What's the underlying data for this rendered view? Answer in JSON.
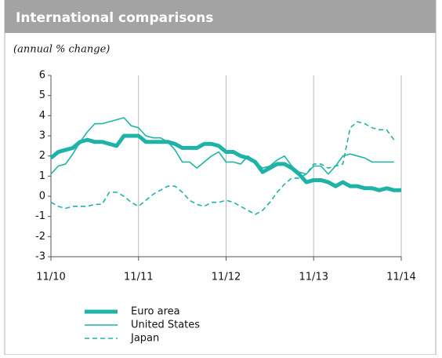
{
  "chart_data": {
    "type": "line",
    "title": "International comparisons",
    "subtitle": "(annual % change)",
    "categories": [
      "11/10",
      null,
      null,
      null,
      null,
      null,
      null,
      null,
      null,
      null,
      null,
      null,
      "11/11",
      null,
      null,
      null,
      null,
      null,
      null,
      null,
      null,
      null,
      null,
      null,
      "11/12",
      null,
      null,
      null,
      null,
      null,
      null,
      null,
      null,
      null,
      null,
      null,
      "11/13",
      null,
      null,
      null,
      null,
      null,
      null,
      null,
      null,
      null,
      null,
      null,
      "11/14"
    ],
    "ylim": [
      -3,
      6
    ],
    "yticks": [
      -3,
      -2,
      -1,
      0,
      1,
      2,
      3,
      4,
      5,
      6
    ],
    "grid": "x",
    "series": [
      {
        "name": "Euro area",
        "color": "#1fb3a8",
        "linestyle": "solid",
        "linewidth": 5,
        "values": [
          1.9,
          2.2,
          2.3,
          2.4,
          2.7,
          2.8,
          2.7,
          2.7,
          2.6,
          2.5,
          3.0,
          3.0,
          3.0,
          2.7,
          2.7,
          2.7,
          2.7,
          2.6,
          2.4,
          2.4,
          2.4,
          2.6,
          2.6,
          2.5,
          2.2,
          2.2,
          2.0,
          1.9,
          1.7,
          1.2,
          1.4,
          1.6,
          1.6,
          1.4,
          1.1,
          0.7,
          0.8,
          0.8,
          0.7,
          0.5,
          0.7,
          0.5,
          0.5,
          0.4,
          0.4,
          0.3,
          0.4,
          0.3,
          0.3
        ]
      },
      {
        "name": "United States",
        "color": "#1fb3a8",
        "linestyle": "solid",
        "linewidth": 1.6,
        "values": [
          1.1,
          1.5,
          1.6,
          2.1,
          2.7,
          3.2,
          3.6,
          3.6,
          3.7,
          3.8,
          3.9,
          3.5,
          3.4,
          3.0,
          2.9,
          2.9,
          2.7,
          2.3,
          1.7,
          1.7,
          1.4,
          1.7,
          2.0,
          2.2,
          1.7,
          1.7,
          1.6,
          2.0,
          1.7,
          1.4,
          1.5,
          1.8,
          2.0,
          1.5,
          1.2,
          1.1,
          1.5,
          1.5,
          1.1,
          1.5,
          2.0,
          2.1,
          2.0,
          1.9,
          1.7,
          1.7,
          1.7,
          1.7,
          null
        ]
      },
      {
        "name": "Japan",
        "color": "#1fb3a8",
        "linestyle": "dashed",
        "linewidth": 1.6,
        "values": [
          -0.3,
          -0.5,
          -0.6,
          -0.5,
          -0.5,
          -0.5,
          -0.4,
          -0.4,
          0.2,
          0.2,
          0.0,
          -0.3,
          -0.5,
          -0.2,
          0.1,
          0.3,
          0.5,
          0.5,
          0.2,
          -0.2,
          -0.4,
          -0.5,
          -0.3,
          -0.3,
          -0.2,
          -0.3,
          -0.5,
          -0.7,
          -0.9,
          -0.7,
          -0.3,
          0.2,
          0.6,
          0.9,
          0.9,
          1.1,
          1.6,
          1.6,
          1.4,
          1.5,
          1.6,
          3.4,
          3.7,
          3.6,
          3.4,
          3.3,
          3.3,
          2.8,
          null
        ]
      }
    ]
  }
}
